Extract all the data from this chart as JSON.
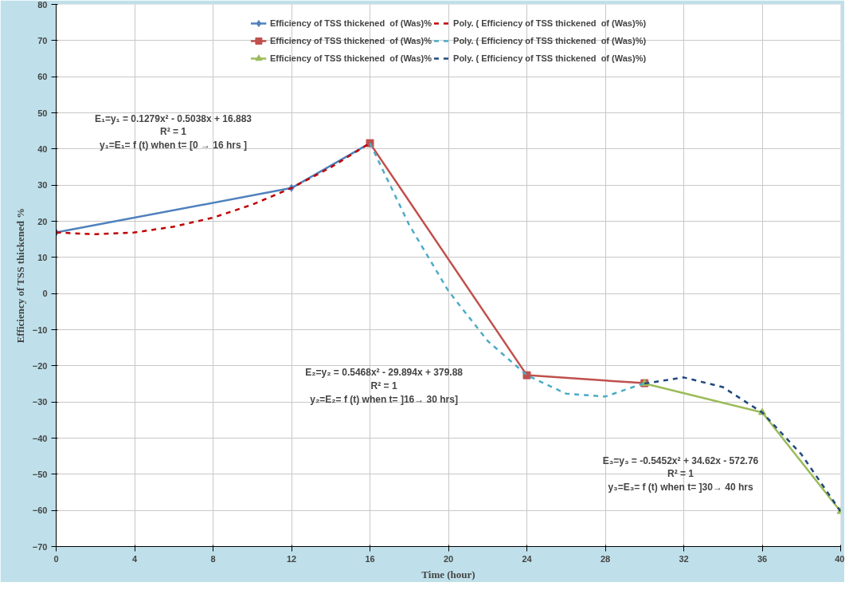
{
  "chart_data": {
    "type": "line",
    "xlabel": "Time (hour)",
    "ylabel": "Efficiency of TSS thickened %",
    "xlim": [
      0,
      40
    ],
    "xticks": [
      0,
      4,
      8,
      12,
      16,
      20,
      24,
      28,
      32,
      36,
      40
    ],
    "ylim": [
      -70,
      80
    ],
    "yticks": [
      -70,
      -60,
      -50,
      -40,
      -30,
      -20,
      -10,
      0,
      10,
      20,
      30,
      40,
      50,
      60,
      70,
      80
    ],
    "grid": true,
    "legend": "top",
    "series": [
      {
        "name": "Efficiency of TSS thickened  of (Was)%",
        "color": "#4f81bd",
        "marker": "diamond",
        "line_style": "solid",
        "x": [
          0,
          12,
          16
        ],
        "values": [
          16.9,
          29.2,
          41.6
        ]
      },
      {
        "name": "Efficiency of TSS thickened  of (Was)%",
        "color": "#c0504d",
        "marker": "square",
        "line_style": "solid",
        "x": [
          16,
          24,
          30
        ],
        "values": [
          41.6,
          -22.6,
          -24.8
        ]
      },
      {
        "name": "Efficiency of TSS thickened  of (Was)%",
        "color": "#9bbb59",
        "marker": "triangle",
        "line_style": "solid",
        "x": [
          30,
          36,
          40
        ],
        "values": [
          -24.9,
          -32.9,
          -60.3
        ]
      },
      {
        "name": "Poly. ( Efficiency of TSS thickened  of (Was)%)",
        "color": "#c00000",
        "marker": "none",
        "line_style": "dashed",
        "x": [
          0,
          2,
          4,
          6,
          8,
          10,
          12,
          14,
          16
        ],
        "values": [
          16.9,
          16.4,
          16.9,
          18.5,
          21.0,
          24.6,
          29.2,
          34.9,
          41.6
        ]
      },
      {
        "name": "Poly. ( Efficiency of TSS thickened  of (Was)%)",
        "color": "#4bacc6",
        "marker": "none",
        "line_style": "dashed",
        "x": [
          16,
          18,
          20,
          22,
          24,
          26,
          28,
          30
        ],
        "values": [
          41.6,
          19.0,
          0.7,
          -13.1,
          -22.6,
          -27.7,
          -28.5,
          -24.8
        ]
      },
      {
        "name": "Poly. ( Efficiency of TSS thickened  of (Was)%)",
        "color": "#1f497d",
        "marker": "none",
        "line_style": "dashed",
        "x": [
          30,
          32,
          34,
          36,
          38,
          40
        ],
        "values": [
          -24.9,
          -23.2,
          -25.9,
          -32.9,
          -44.5,
          -60.3
        ]
      }
    ],
    "annotations": [
      "E₁=y₁ = 0.1279x² - 0.5038x + 16.883\nR² = 1\ny₁=E₁= f (t) when t= [0 → 16 hrs ]",
      "E₂=y₂ = 0.5468x² - 29.894x + 379.88\nR² = 1\ny₂=E₂= f (t) when t= ]16→ 30 hrs]",
      "E₃=y₃ = -0.5452x² + 34.62x - 572.76\nR² = 1\ny₃=E₃= f (t) when t= ]30→ 40 hrs"
    ]
  }
}
